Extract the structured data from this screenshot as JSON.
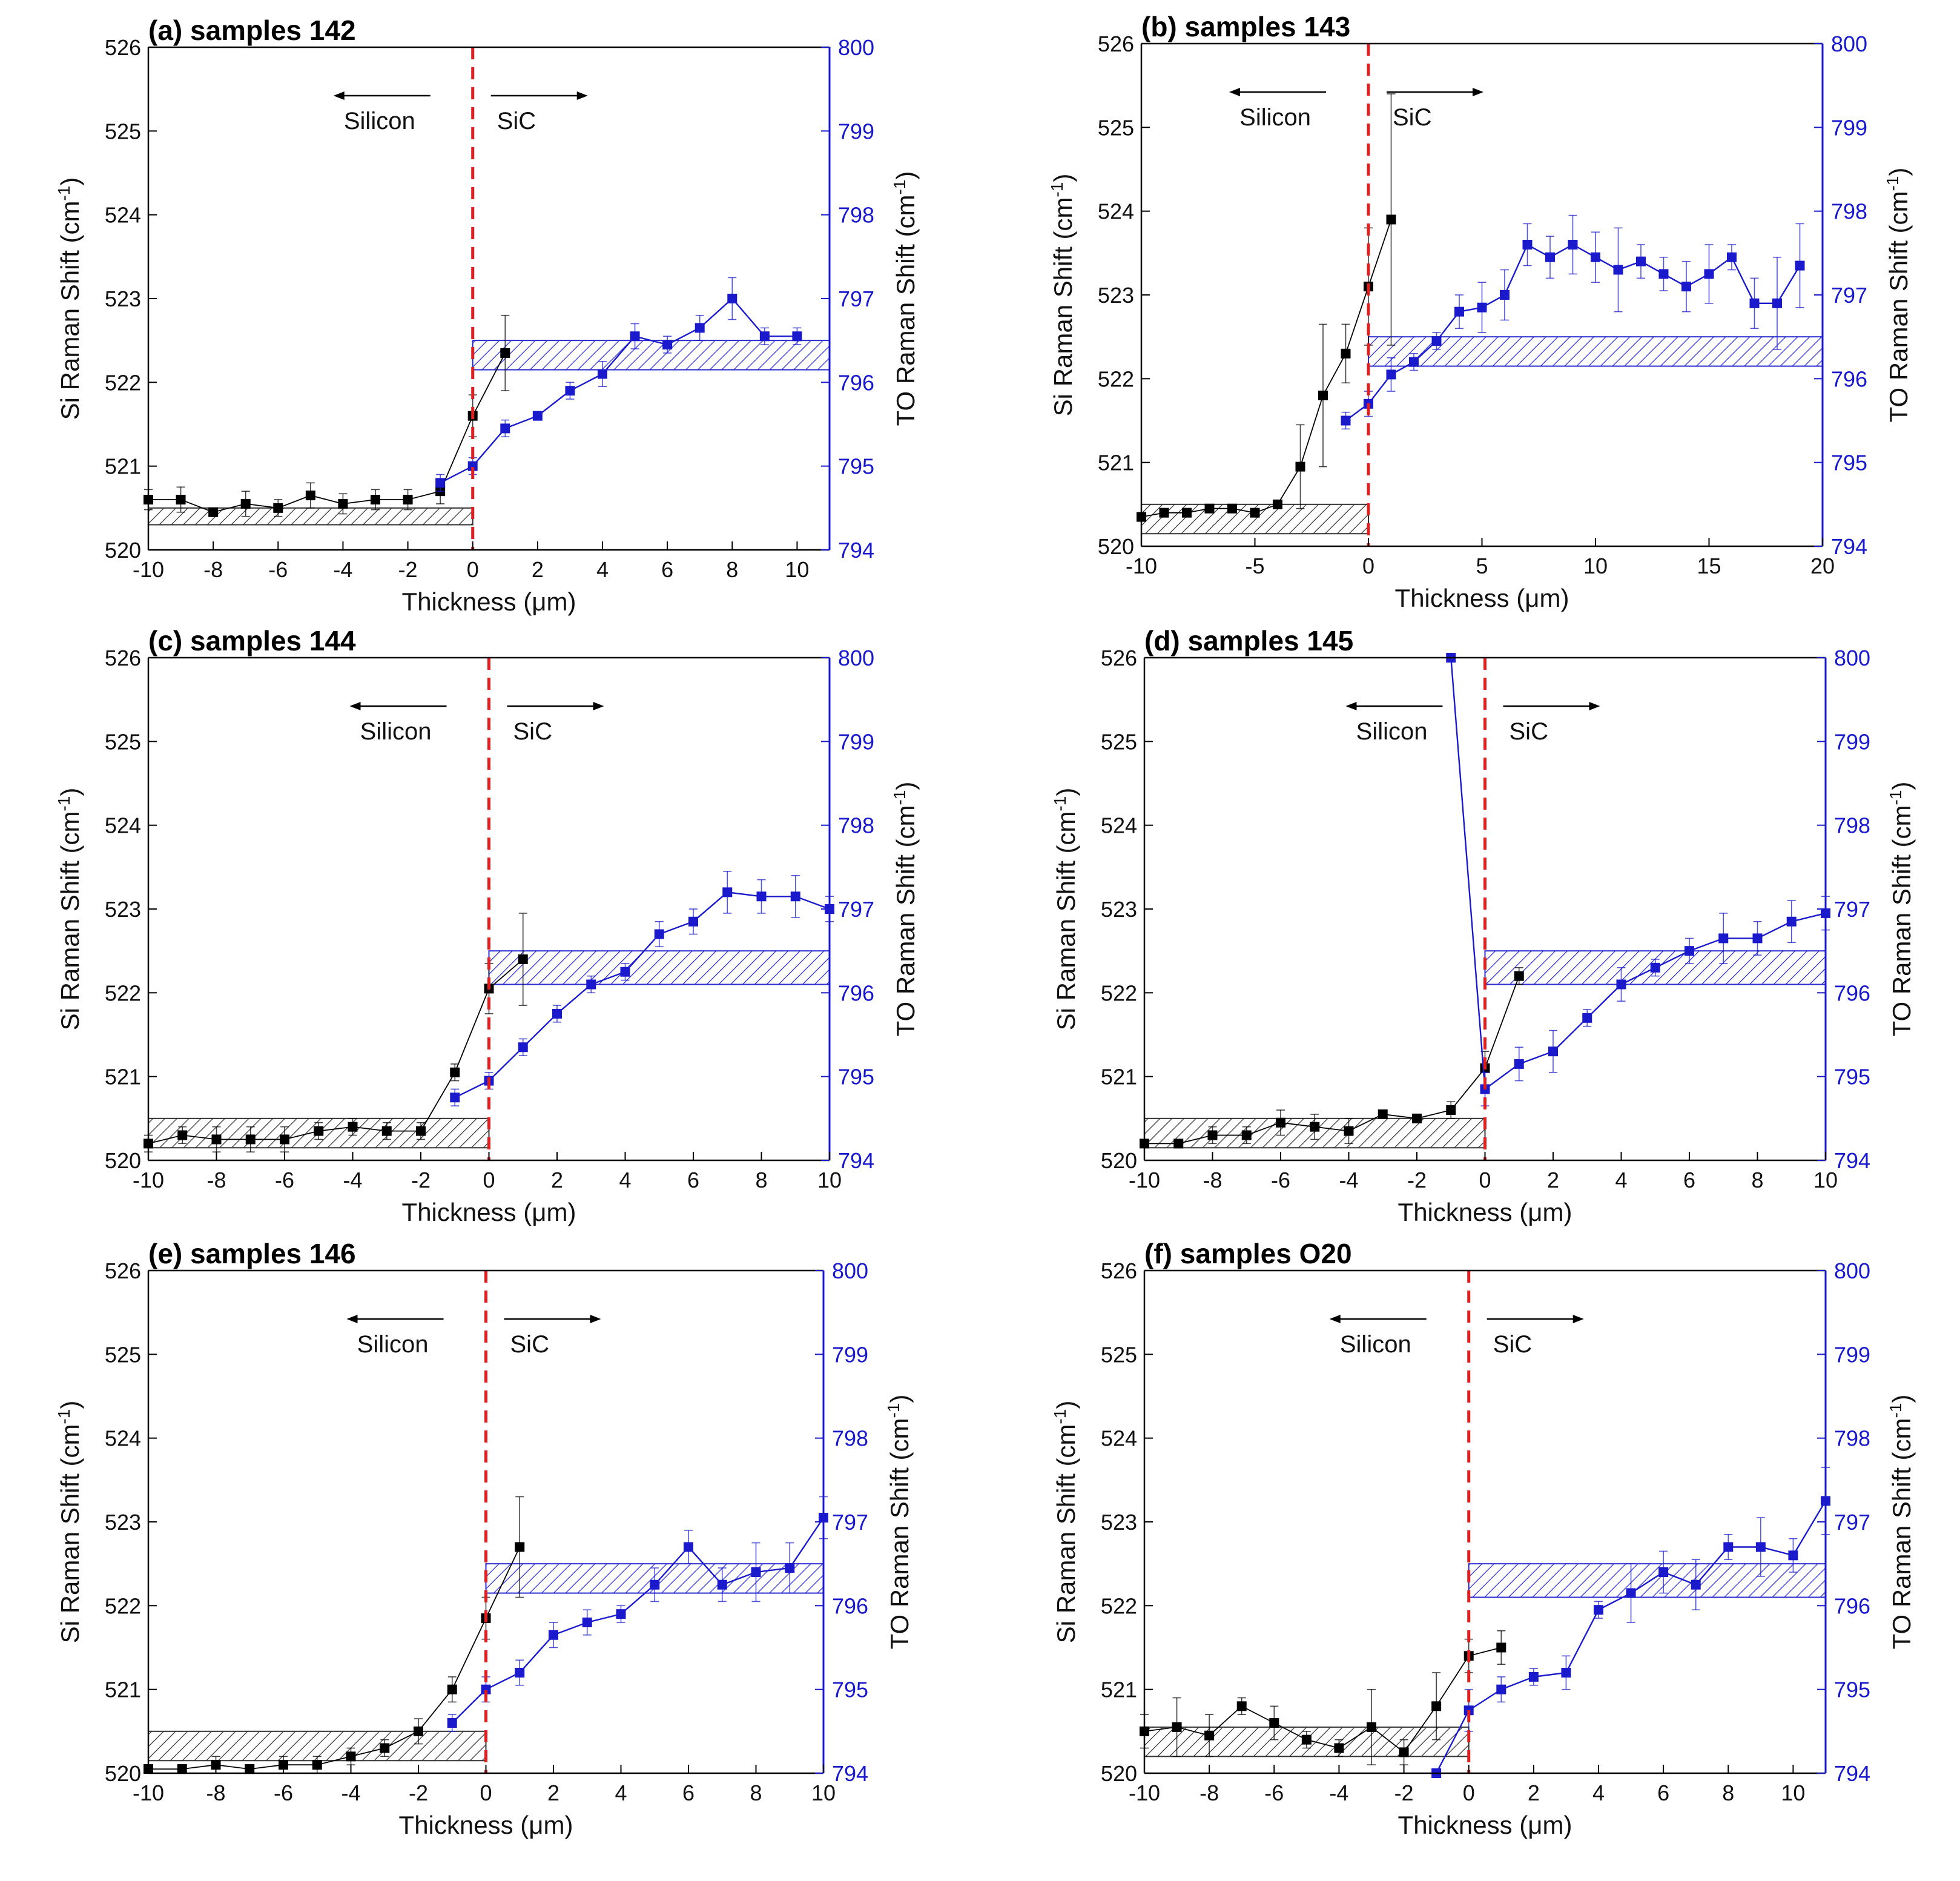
{
  "figure": {
    "palette": {
      "si": "#000000",
      "to": "#1a1acc",
      "interface": "#e02020",
      "hatch_si": "#333333",
      "hatch_to": "#2a2ad0"
    },
    "labels": {
      "left_axis": "Si Raman Shift (cm",
      "right_axis": "TO Raman Shift (cm",
      "exponent": "-1",
      "close_paren": ")",
      "x_axis_prefix": "Thickness (",
      "x_axis_unit": "μm",
      "x_axis_suffix": ")",
      "silicon": "Silicon",
      "sic": "SiC"
    }
  },
  "chart_data": [
    {
      "type": "scatter",
      "panel": "a",
      "title": "(a) samples 142",
      "xlabel": "Thickness (μm)",
      "ylabel": "Si Raman Shift (cm-1)",
      "y2label": "TO Raman Shift (cm-1)",
      "xlim": [
        -10,
        11
      ],
      "xticks": [
        -10,
        -8,
        -6,
        -4,
        -2,
        0,
        2,
        4,
        6,
        8,
        10
      ],
      "ylim": [
        520,
        526
      ],
      "y2lim": [
        794,
        800
      ],
      "si_band": [
        520.3,
        520.5
      ],
      "to_band": [
        796.15,
        796.5
      ],
      "series": [
        {
          "name": "Si Raman Shift",
          "axis": "left",
          "x": [
            -10,
            -9,
            -8,
            -7,
            -6,
            -5,
            -4,
            -3,
            -2,
            -1,
            0,
            1
          ],
          "y": [
            520.6,
            520.6,
            520.45,
            520.55,
            520.5,
            520.65,
            520.55,
            520.6,
            520.6,
            520.7,
            521.6,
            522.35
          ],
          "err": [
            0.12,
            0.15,
            0.05,
            0.15,
            0.1,
            0.15,
            0.12,
            0.12,
            0.12,
            0.15,
            0.25,
            0.45
          ]
        },
        {
          "name": "TO Raman Shift",
          "axis": "right",
          "x": [
            -1,
            0,
            1,
            2,
            3,
            4,
            5,
            6,
            7,
            8,
            9,
            10
          ],
          "y": [
            794.8,
            795.0,
            795.45,
            795.6,
            795.9,
            796.1,
            796.55,
            796.45,
            796.65,
            797.0,
            796.55,
            796.55
          ],
          "err": [
            0.1,
            0.1,
            0.1,
            0.05,
            0.1,
            0.15,
            0.15,
            0.1,
            0.15,
            0.25,
            0.1,
            0.1
          ]
        }
      ]
    },
    {
      "type": "scatter",
      "panel": "b",
      "title": "(b) samples 143",
      "xlabel": "Thickness (μm)",
      "ylabel": "Si Raman Shift (cm-1)",
      "y2label": "TO Raman Shift (cm-1)",
      "xlim": [
        -10,
        20
      ],
      "xticks": [
        -10,
        -5,
        0,
        5,
        10,
        15,
        20
      ],
      "ylim": [
        520,
        526
      ],
      "y2lim": [
        794,
        800
      ],
      "si_band": [
        520.15,
        520.5
      ],
      "to_band": [
        796.15,
        796.5
      ],
      "series": [
        {
          "name": "Si Raman Shift",
          "axis": "left",
          "x": [
            -10,
            -9,
            -8,
            -7,
            -6,
            -5,
            -4,
            -3,
            -2,
            -1,
            0,
            1
          ],
          "y": [
            520.35,
            520.4,
            520.4,
            520.45,
            520.45,
            520.4,
            520.5,
            520.95,
            521.8,
            522.3,
            523.1,
            523.9
          ],
          "err": [
            0.05,
            0.05,
            0.05,
            0.05,
            0.05,
            0.05,
            0.05,
            0.5,
            0.85,
            0.35,
            0.7,
            1.5
          ]
        },
        {
          "name": "TO Raman Shift",
          "axis": "right",
          "x": [
            -1,
            0,
            1,
            2,
            3,
            4,
            5,
            6,
            7,
            8,
            9,
            10,
            11,
            12,
            13,
            14,
            15,
            16,
            17,
            18,
            19
          ],
          "y": [
            795.5,
            795.7,
            796.05,
            796.2,
            796.45,
            796.8,
            796.85,
            797.0,
            797.6,
            797.45,
            797.6,
            797.45,
            797.3,
            797.4,
            797.25,
            797.1,
            797.25,
            797.45,
            796.9,
            796.9,
            797.35
          ],
          "err": [
            0.1,
            0.15,
            0.2,
            0.1,
            0.1,
            0.2,
            0.3,
            0.3,
            0.25,
            0.25,
            0.35,
            0.3,
            0.5,
            0.2,
            0.2,
            0.3,
            0.35,
            0.15,
            0.3,
            0.55,
            0.5
          ]
        }
      ]
    },
    {
      "type": "scatter",
      "panel": "c",
      "title": "(c) samples 144",
      "xlabel": "Thickness (μm)",
      "ylabel": "Si Raman Shift (cm-1)",
      "y2label": "TO Raman Shift (cm-1)",
      "xlim": [
        -10,
        10
      ],
      "xticks": [
        -10,
        -8,
        -6,
        -4,
        -2,
        0,
        2,
        4,
        6,
        8,
        10
      ],
      "ylim": [
        520,
        526
      ],
      "y2lim": [
        794,
        800
      ],
      "si_band": [
        520.15,
        520.5
      ],
      "to_band": [
        796.1,
        796.5
      ],
      "series": [
        {
          "name": "Si Raman Shift",
          "axis": "left",
          "x": [
            -10,
            -9,
            -8,
            -7,
            -6,
            -5,
            -4,
            -3,
            -2,
            -1,
            0,
            1
          ],
          "y": [
            520.2,
            520.3,
            520.25,
            520.25,
            520.25,
            520.35,
            520.4,
            520.35,
            520.35,
            521.05,
            522.05,
            522.4
          ],
          "err": [
            0.1,
            0.1,
            0.15,
            0.15,
            0.15,
            0.1,
            0.1,
            0.1,
            0.1,
            0.1,
            0.3,
            0.55
          ]
        },
        {
          "name": "TO Raman Shift",
          "axis": "right",
          "x": [
            -1,
            0,
            1,
            2,
            3,
            4,
            5,
            6,
            7,
            8,
            9,
            10
          ],
          "y": [
            794.75,
            794.95,
            795.35,
            795.75,
            796.1,
            796.25,
            796.7,
            796.85,
            797.2,
            797.15,
            797.15,
            797.0
          ],
          "err": [
            0.1,
            0.1,
            0.1,
            0.1,
            0.1,
            0.1,
            0.15,
            0.15,
            0.25,
            0.2,
            0.25,
            0.15
          ]
        }
      ]
    },
    {
      "type": "scatter",
      "panel": "d",
      "title": "(d) samples 145",
      "xlabel": "Thickness (μm)",
      "ylabel": "Si Raman Shift (cm-1)",
      "y2label": "TO Raman Shift (cm-1)",
      "xlim": [
        -10,
        10
      ],
      "xticks": [
        -10,
        -8,
        -6,
        -4,
        -2,
        0,
        2,
        4,
        6,
        8,
        10
      ],
      "ylim": [
        520,
        526
      ],
      "y2lim": [
        794,
        800
      ],
      "si_band": [
        520.15,
        520.5
      ],
      "to_band": [
        796.1,
        796.5
      ],
      "series": [
        {
          "name": "Si Raman Shift",
          "axis": "left",
          "x": [
            -10,
            -9,
            -8,
            -7,
            -6,
            -5,
            -4,
            -3,
            -2,
            -1,
            0,
            1
          ],
          "y": [
            520.2,
            520.2,
            520.3,
            520.3,
            520.45,
            520.4,
            520.35,
            520.55,
            520.5,
            520.6,
            521.1,
            522.2
          ],
          "err": [
            0.05,
            0.05,
            0.1,
            0.1,
            0.15,
            0.15,
            0.15,
            0.05,
            0.05,
            0.1,
            0.2,
            0.1
          ]
        },
        {
          "name": "TO Raman Shift",
          "axis": "right",
          "x": [
            -1,
            0,
            1,
            2,
            3,
            4,
            5,
            6,
            7,
            8,
            9,
            10
          ],
          "y": [
            800.0,
            794.85,
            795.15,
            795.3,
            795.7,
            796.1,
            796.3,
            796.5,
            796.65,
            796.65,
            796.85,
            796.95
          ],
          "err": [
            0,
            0.2,
            0.2,
            0.25,
            0.1,
            0.2,
            0.1,
            0.15,
            0.3,
            0.2,
            0.25,
            0.2
          ]
        }
      ]
    },
    {
      "type": "scatter",
      "panel": "e",
      "title": "(e) samples 146",
      "xlabel": "Thickness (μm)",
      "ylabel": "Si Raman Shift (cm-1)",
      "y2label": "TO Raman Shift (cm-1)",
      "xlim": [
        -10,
        10
      ],
      "xticks": [
        -10,
        -8,
        -6,
        -4,
        -2,
        0,
        2,
        4,
        6,
        8,
        10
      ],
      "ylim": [
        520,
        526
      ],
      "y2lim": [
        794,
        800
      ],
      "si_band": [
        520.15,
        520.5
      ],
      "to_band": [
        796.15,
        796.5
      ],
      "series": [
        {
          "name": "Si Raman Shift",
          "axis": "left",
          "x": [
            -10,
            -9,
            -8,
            -7,
            -6,
            -5,
            -4,
            -3,
            -2,
            -1,
            0,
            1
          ],
          "y": [
            520.05,
            520.05,
            520.1,
            520.05,
            520.1,
            520.1,
            520.2,
            520.3,
            520.5,
            521.0,
            521.85,
            522.7
          ],
          "err": [
            0.05,
            0.05,
            0.1,
            0.05,
            0.1,
            0.1,
            0.1,
            0.1,
            0.15,
            0.15,
            0.25,
            0.6
          ]
        },
        {
          "name": "TO Raman Shift",
          "axis": "right",
          "x": [
            -1,
            0,
            1,
            2,
            3,
            4,
            5,
            6,
            7,
            8,
            9,
            10
          ],
          "y": [
            794.6,
            795.0,
            795.2,
            795.65,
            795.8,
            795.9,
            796.25,
            796.7,
            796.25,
            796.4,
            796.45,
            797.05
          ],
          "err": [
            0.1,
            0.15,
            0.15,
            0.15,
            0.15,
            0.1,
            0.2,
            0.2,
            0.2,
            0.35,
            0.3,
            0.25
          ]
        }
      ]
    },
    {
      "type": "scatter",
      "panel": "f",
      "title": "(f) samples  O20",
      "xlabel": "Thickness (μm)",
      "ylabel": "Si Raman Shift (cm-1)",
      "y2label": "TO Raman Shift (cm-1)",
      "xlim": [
        -10,
        11
      ],
      "xticks": [
        -10,
        -8,
        -6,
        -4,
        -2,
        0,
        2,
        4,
        6,
        8,
        10
      ],
      "ylim": [
        520,
        526
      ],
      "y2lim": [
        794,
        800
      ],
      "si_band": [
        520.2,
        520.55
      ],
      "to_band": [
        796.1,
        796.5
      ],
      "series": [
        {
          "name": "Si Raman Shift",
          "axis": "left",
          "x": [
            -10,
            -9,
            -8,
            -7,
            -6,
            -5,
            -4,
            -3,
            -2,
            -1,
            0,
            1
          ],
          "y": [
            520.5,
            520.55,
            520.45,
            520.8,
            520.6,
            520.4,
            520.3,
            520.55,
            520.25,
            520.8,
            521.4,
            521.5
          ],
          "err": [
            0.2,
            0.35,
            0.25,
            0.1,
            0.2,
            0.1,
            0.1,
            0.45,
            0.15,
            0.4,
            0.2,
            0.2
          ]
        },
        {
          "name": "TO Raman Shift",
          "axis": "right",
          "x": [
            -1,
            0,
            1,
            2,
            3,
            4,
            5,
            6,
            7,
            8,
            9,
            10,
            11
          ],
          "y": [
            794.0,
            794.75,
            795.0,
            795.15,
            795.2,
            795.95,
            796.15,
            796.4,
            796.25,
            796.7,
            796.7,
            796.6,
            797.25
          ],
          "err": [
            0,
            0.25,
            0.15,
            0.1,
            0.2,
            0.1,
            0.35,
            0.25,
            0.3,
            0.15,
            0.35,
            0.2,
            0.4
          ]
        }
      ]
    }
  ]
}
